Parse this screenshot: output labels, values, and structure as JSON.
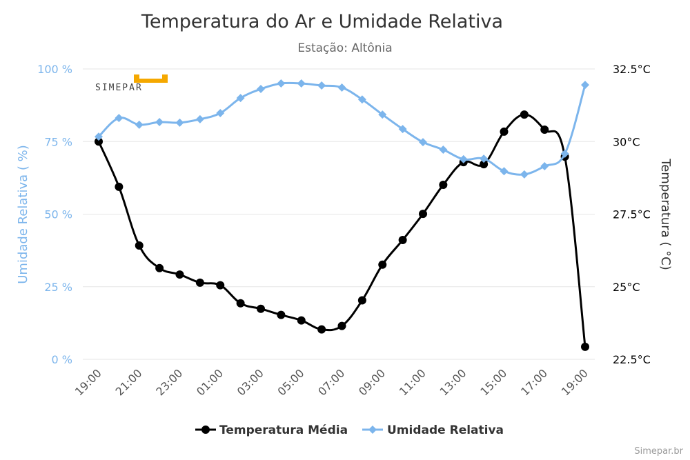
{
  "chart_data": {
    "type": "line",
    "title": "Temperatura do Ar e Umidade Relativa",
    "subtitle": "Estação: Altônia",
    "x": [
      "19:00",
      "20:00",
      "21:00",
      "22:00",
      "23:00",
      "00:00",
      "01:00",
      "02:00",
      "03:00",
      "04:00",
      "05:00",
      "06:00",
      "07:00",
      "08:00",
      "09:00",
      "10:00",
      "11:00",
      "12:00",
      "13:00",
      "14:00",
      "15:00",
      "16:00",
      "17:00",
      "18:00",
      "19:00"
    ],
    "x_tick_labels": [
      "19:00",
      "21:00",
      "23:00",
      "01:00",
      "03:00",
      "05:00",
      "07:00",
      "09:00",
      "11:00",
      "13:00",
      "15:00",
      "17:00",
      "19:00"
    ],
    "y_left": {
      "label": "Umidade Relativa ( %)",
      "range": [
        0,
        100
      ],
      "ticks": [
        "0 %",
        "25 %",
        "50 %",
        "75 %",
        "100 %"
      ],
      "color": "#7cb5ec"
    },
    "y_right": {
      "label": "Temperatura ( °C)",
      "range": [
        22.5,
        32.5
      ],
      "ticks": [
        "22.5°C",
        "25°C",
        "27.5°C",
        "30°C",
        "32.5°C"
      ],
      "color": "#000000"
    },
    "grid": true,
    "legend_position": "bottom",
    "series": [
      {
        "name": "Temperatura Média",
        "axis": "right",
        "color": "#000000",
        "marker": "circle",
        "values": [
          30.0,
          28.44,
          26.42,
          25.64,
          25.42,
          25.14,
          25.05,
          24.43,
          24.24,
          24.03,
          23.84,
          23.53,
          23.65,
          24.53,
          25.76,
          26.61,
          27.51,
          28.51,
          29.29,
          29.22,
          30.34,
          30.93,
          30.41,
          29.48,
          22.93
        ]
      },
      {
        "name": "Umidade Relativa",
        "axis": "left",
        "color": "#7cb5ec",
        "marker": "diamond",
        "values": [
          76.7,
          83.1,
          80.8,
          81.7,
          81.5,
          82.7,
          84.8,
          90.0,
          93.1,
          95.0,
          95.0,
          94.3,
          93.6,
          89.5,
          84.3,
          79.3,
          74.8,
          72.2,
          68.9,
          69.1,
          64.8,
          63.7,
          66.5,
          70.8,
          94.5
        ]
      }
    ]
  },
  "logo": {
    "text": "SIMEPAR",
    "color": "#f5a800"
  },
  "credit": "Simepar.br"
}
